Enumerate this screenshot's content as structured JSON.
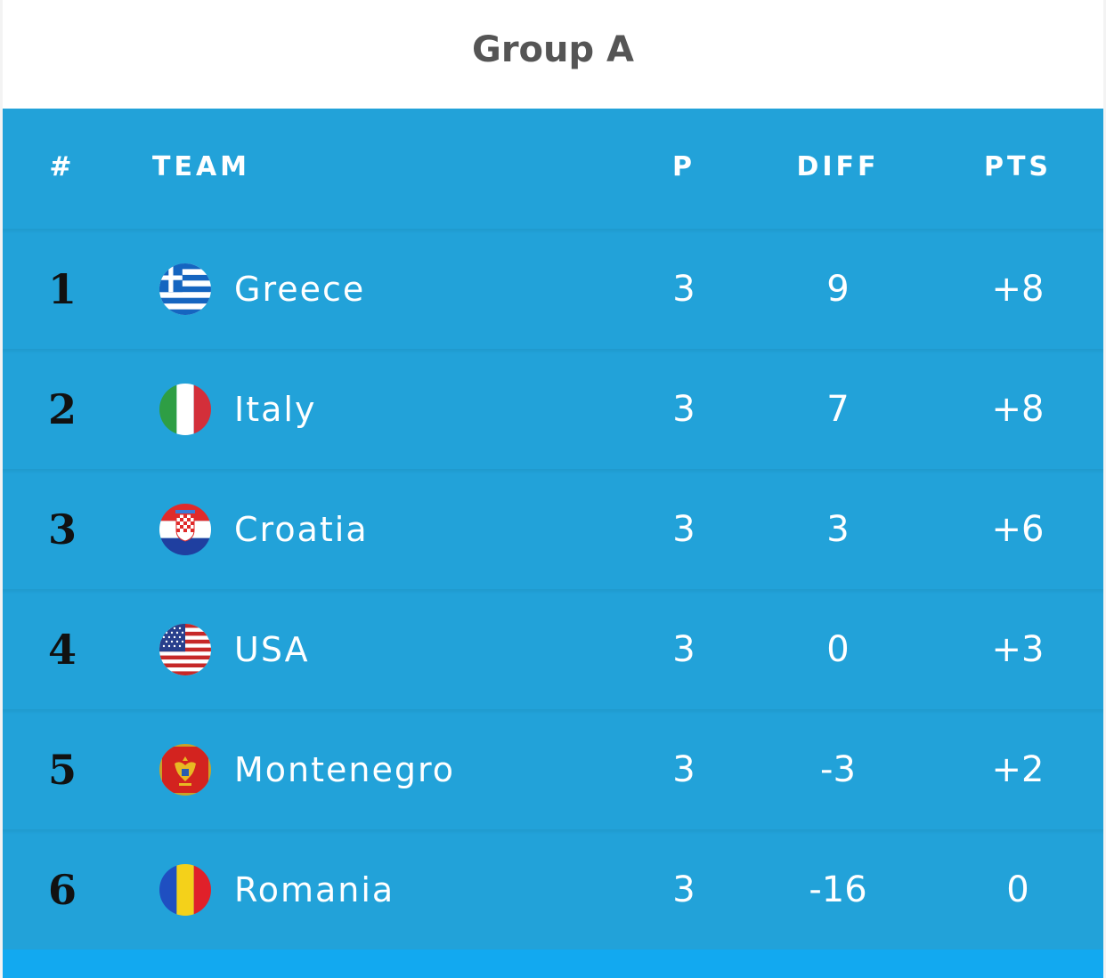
{
  "group_title": "Group A",
  "columns": {
    "rank": "#",
    "team": "TEAM",
    "played": "P",
    "diff": "DIFF",
    "points": "PTS"
  },
  "colors": {
    "row_bg": "#22a2d9",
    "bottom_bar": "#12a9f0",
    "title": "#555555"
  },
  "rows": [
    {
      "rank": "1",
      "team": "Greece",
      "flag": "greece-flag-icon",
      "played": "3",
      "diff": "9",
      "points": "+8"
    },
    {
      "rank": "2",
      "team": "Italy",
      "flag": "italy-flag-icon",
      "played": "3",
      "diff": "7",
      "points": "+8"
    },
    {
      "rank": "3",
      "team": "Croatia",
      "flag": "croatia-flag-icon",
      "played": "3",
      "diff": "3",
      "points": "+6"
    },
    {
      "rank": "4",
      "team": "USA",
      "flag": "usa-flag-icon",
      "played": "3",
      "diff": "0",
      "points": "+3"
    },
    {
      "rank": "5",
      "team": "Montenegro",
      "flag": "montenegro-flag-icon",
      "played": "3",
      "diff": "-3",
      "points": "+2"
    },
    {
      "rank": "6",
      "team": "Romania",
      "flag": "romania-flag-icon",
      "played": "3",
      "diff": "-16",
      "points": "0"
    }
  ]
}
